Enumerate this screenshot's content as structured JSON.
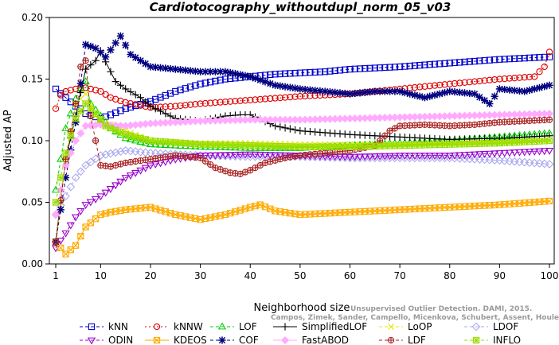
{
  "chart_data": {
    "type": "line",
    "title": "Cardiotocography_withoutdupl_norm_05_v03",
    "xlabel": "Neighborhood size",
    "ylabel": "Adjusted AP",
    "xlim": [
      1,
      100
    ],
    "ylim": [
      0,
      0.2
    ],
    "x_ticks": [
      1,
      10,
      20,
      30,
      40,
      50,
      60,
      70,
      80,
      90,
      100
    ],
    "y_ticks": [
      "0.00",
      "0.05",
      "0.10",
      "0.15",
      "0.20"
    ],
    "grid": false,
    "legend_position": "bottom",
    "watermark": [
      "Unsupervised Outlier Detection. DAMI, 2015.",
      "Campos, Zimek, Sander, Campello, Micenkova, Schubert, Assent, Houle"
    ],
    "series": [
      {
        "name": "kNN",
        "color": "#0000cc",
        "marker": "square",
        "dash": "4,3",
        "anchors": [
          [
            1,
            0.142
          ],
          [
            3,
            0.135
          ],
          [
            5,
            0.128
          ],
          [
            6,
            0.126
          ],
          [
            7,
            0.122
          ],
          [
            10,
            0.118
          ],
          [
            12,
            0.121
          ],
          [
            15,
            0.126
          ],
          [
            20,
            0.132
          ],
          [
            25,
            0.14
          ],
          [
            30,
            0.146
          ],
          [
            35,
            0.15
          ],
          [
            40,
            0.152
          ],
          [
            45,
            0.154
          ],
          [
            50,
            0.155
          ],
          [
            55,
            0.156
          ],
          [
            60,
            0.158
          ],
          [
            70,
            0.16
          ],
          [
            80,
            0.163
          ],
          [
            90,
            0.166
          ],
          [
            100,
            0.168
          ]
        ]
      },
      {
        "name": "kNNW",
        "color": "#dd0000",
        "marker": "circle",
        "dash": "2,3",
        "anchors": [
          [
            1,
            0.126
          ],
          [
            2,
            0.137
          ],
          [
            3,
            0.14
          ],
          [
            5,
            0.142
          ],
          [
            7,
            0.143
          ],
          [
            10,
            0.14
          ],
          [
            12,
            0.135
          ],
          [
            15,
            0.131
          ],
          [
            20,
            0.127
          ],
          [
            25,
            0.128
          ],
          [
            30,
            0.13
          ],
          [
            40,
            0.133
          ],
          [
            50,
            0.136
          ],
          [
            60,
            0.138
          ],
          [
            70,
            0.142
          ],
          [
            80,
            0.146
          ],
          [
            90,
            0.15
          ],
          [
            97,
            0.152
          ],
          [
            99,
            0.16
          ],
          [
            100,
            0.172
          ]
        ]
      },
      {
        "name": "LOF",
        "color": "#00cc00",
        "marker": "triangle",
        "dash": "4,3",
        "anchors": [
          [
            1,
            0.06
          ],
          [
            3,
            0.11
          ],
          [
            5,
            0.134
          ],
          [
            6,
            0.142
          ],
          [
            7,
            0.148
          ],
          [
            8,
            0.13
          ],
          [
            10,
            0.12
          ],
          [
            12,
            0.11
          ],
          [
            15,
            0.102
          ],
          [
            20,
            0.097
          ],
          [
            25,
            0.096
          ],
          [
            30,
            0.095
          ],
          [
            40,
            0.094
          ],
          [
            50,
            0.094
          ],
          [
            60,
            0.096
          ],
          [
            70,
            0.098
          ],
          [
            80,
            0.1
          ],
          [
            90,
            0.103
          ],
          [
            100,
            0.106
          ]
        ]
      },
      {
        "name": "SimplifiedLOF",
        "color": "#000000",
        "marker": "plus",
        "dash": "",
        "anchors": [
          [
            1,
            0.018
          ],
          [
            3,
            0.085
          ],
          [
            5,
            0.12
          ],
          [
            7,
            0.158
          ],
          [
            9,
            0.165
          ],
          [
            10,
            0.173
          ],
          [
            11,
            0.164
          ],
          [
            13,
            0.148
          ],
          [
            15,
            0.142
          ],
          [
            18,
            0.135
          ],
          [
            20,
            0.128
          ],
          [
            25,
            0.118
          ],
          [
            30,
            0.116
          ],
          [
            35,
            0.12
          ],
          [
            38,
            0.121
          ],
          [
            40,
            0.121
          ],
          [
            45,
            0.112
          ],
          [
            50,
            0.108
          ],
          [
            60,
            0.105
          ],
          [
            70,
            0.103
          ],
          [
            80,
            0.101
          ],
          [
            90,
            0.102
          ],
          [
            100,
            0.104
          ]
        ]
      },
      {
        "name": "LoOP",
        "color": "#e6e600",
        "marker": "cross",
        "dash": "4,3",
        "anchors": [
          [
            1,
            0.015
          ],
          [
            3,
            0.085
          ],
          [
            5,
            0.13
          ],
          [
            7,
            0.138
          ],
          [
            9,
            0.12
          ],
          [
            11,
            0.115
          ],
          [
            15,
            0.108
          ],
          [
            20,
            0.1
          ],
          [
            30,
            0.098
          ],
          [
            40,
            0.098
          ],
          [
            50,
            0.097
          ],
          [
            60,
            0.097
          ],
          [
            70,
            0.097
          ],
          [
            80,
            0.098
          ],
          [
            90,
            0.099
          ],
          [
            100,
            0.1
          ]
        ]
      },
      {
        "name": "LDOF",
        "color": "#aaaaee",
        "marker": "diamond",
        "dash": "4,3",
        "anchors": [
          [
            1,
            0.04
          ],
          [
            3,
            0.055
          ],
          [
            5,
            0.07
          ],
          [
            7,
            0.08
          ],
          [
            10,
            0.088
          ],
          [
            15,
            0.092
          ],
          [
            20,
            0.09
          ],
          [
            30,
            0.088
          ],
          [
            40,
            0.087
          ],
          [
            50,
            0.087
          ],
          [
            60,
            0.086
          ],
          [
            70,
            0.086
          ],
          [
            80,
            0.086
          ],
          [
            90,
            0.084
          ],
          [
            100,
            0.081
          ]
        ]
      },
      {
        "name": "ODIN",
        "color": "#9900cc",
        "marker": "triangle-down",
        "dash": "4,3",
        "anchors": [
          [
            1,
            0.013
          ],
          [
            3,
            0.025
          ],
          [
            5,
            0.038
          ],
          [
            7,
            0.048
          ],
          [
            10,
            0.055
          ],
          [
            15,
            0.07
          ],
          [
            20,
            0.08
          ],
          [
            25,
            0.085
          ],
          [
            30,
            0.088
          ],
          [
            40,
            0.089
          ],
          [
            50,
            0.088
          ],
          [
            60,
            0.087
          ],
          [
            70,
            0.088
          ],
          [
            80,
            0.088
          ],
          [
            90,
            0.09
          ],
          [
            100,
            0.092
          ]
        ]
      },
      {
        "name": "KDEOS",
        "color": "#ffaa00",
        "marker": "square-x",
        "dash": "",
        "anchors": [
          [
            1,
            0.018
          ],
          [
            3,
            0.008
          ],
          [
            5,
            0.015
          ],
          [
            7,
            0.03
          ],
          [
            10,
            0.04
          ],
          [
            12,
            0.042
          ],
          [
            15,
            0.044
          ],
          [
            20,
            0.046
          ],
          [
            25,
            0.04
          ],
          [
            30,
            0.036
          ],
          [
            35,
            0.04
          ],
          [
            40,
            0.046
          ],
          [
            42,
            0.048
          ],
          [
            45,
            0.043
          ],
          [
            50,
            0.04
          ],
          [
            60,
            0.042
          ],
          [
            70,
            0.044
          ],
          [
            80,
            0.046
          ],
          [
            90,
            0.048
          ],
          [
            100,
            0.051
          ]
        ]
      },
      {
        "name": "COF",
        "color": "#000080",
        "marker": "asterisk",
        "dash": "4,3",
        "anchors": [
          [
            1,
            0.018
          ],
          [
            3,
            0.07
          ],
          [
            5,
            0.115
          ],
          [
            7,
            0.178
          ],
          [
            9,
            0.175
          ],
          [
            11,
            0.168
          ],
          [
            14,
            0.185
          ],
          [
            16,
            0.17
          ],
          [
            20,
            0.16
          ],
          [
            25,
            0.158
          ],
          [
            30,
            0.156
          ],
          [
            35,
            0.156
          ],
          [
            40,
            0.152
          ],
          [
            45,
            0.145
          ],
          [
            50,
            0.142
          ],
          [
            55,
            0.14
          ],
          [
            60,
            0.138
          ],
          [
            65,
            0.14
          ],
          [
            70,
            0.14
          ],
          [
            75,
            0.135
          ],
          [
            80,
            0.14
          ],
          [
            85,
            0.138
          ],
          [
            88,
            0.13
          ],
          [
            90,
            0.142
          ],
          [
            95,
            0.14
          ],
          [
            100,
            0.145
          ]
        ]
      },
      {
        "name": "FastABOD",
        "color": "#ffaaff",
        "marker": "diamond-filled",
        "dash": "",
        "anchors": [
          [
            1,
            0.04
          ],
          [
            3,
            0.08
          ],
          [
            5,
            0.1
          ],
          [
            7,
            0.112
          ],
          [
            10,
            0.113
          ],
          [
            15,
            0.112
          ],
          [
            20,
            0.114
          ],
          [
            30,
            0.116
          ],
          [
            40,
            0.117
          ],
          [
            50,
            0.117
          ],
          [
            60,
            0.118
          ],
          [
            70,
            0.119
          ],
          [
            80,
            0.12
          ],
          [
            90,
            0.121
          ],
          [
            100,
            0.122
          ]
        ]
      },
      {
        "name": "LDF",
        "color": "#aa2222",
        "marker": "circle-plus",
        "dash": "4,3",
        "anchors": [
          [
            1,
            0.018
          ],
          [
            3,
            0.085
          ],
          [
            5,
            0.13
          ],
          [
            6,
            0.16
          ],
          [
            7,
            0.165
          ],
          [
            8,
            0.12
          ],
          [
            10,
            0.08
          ],
          [
            12,
            0.079
          ],
          [
            15,
            0.082
          ],
          [
            20,
            0.085
          ],
          [
            25,
            0.088
          ],
          [
            30,
            0.086
          ],
          [
            33,
            0.078
          ],
          [
            36,
            0.074
          ],
          [
            38,
            0.073
          ],
          [
            40,
            0.076
          ],
          [
            43,
            0.082
          ],
          [
            47,
            0.086
          ],
          [
            50,
            0.088
          ],
          [
            55,
            0.09
          ],
          [
            60,
            0.092
          ],
          [
            65,
            0.096
          ],
          [
            68,
            0.108
          ],
          [
            70,
            0.112
          ],
          [
            75,
            0.113
          ],
          [
            80,
            0.112
          ],
          [
            85,
            0.113
          ],
          [
            90,
            0.115
          ],
          [
            95,
            0.116
          ],
          [
            100,
            0.117
          ]
        ]
      },
      {
        "name": "INFLO",
        "color": "#99dd00",
        "marker": "square-star",
        "dash": "4,3",
        "anchors": [
          [
            1,
            0.05
          ],
          [
            3,
            0.09
          ],
          [
            5,
            0.118
          ],
          [
            7,
            0.13
          ],
          [
            9,
            0.122
          ],
          [
            11,
            0.112
          ],
          [
            15,
            0.105
          ],
          [
            20,
            0.1
          ],
          [
            30,
            0.097
          ],
          [
            40,
            0.096
          ],
          [
            50,
            0.095
          ],
          [
            60,
            0.095
          ],
          [
            70,
            0.096
          ],
          [
            80,
            0.097
          ],
          [
            90,
            0.098
          ],
          [
            100,
            0.1
          ]
        ]
      }
    ]
  }
}
